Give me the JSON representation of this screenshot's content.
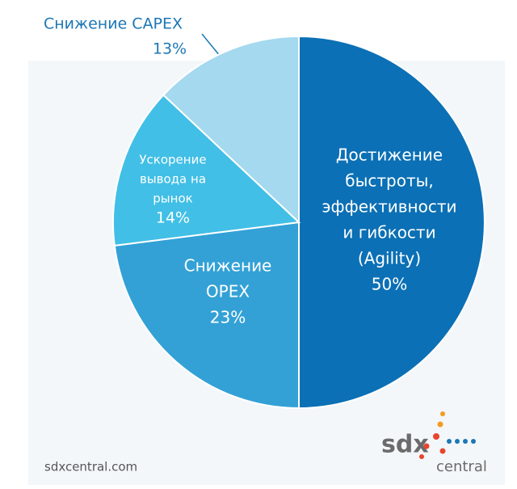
{
  "chart_data": {
    "type": "pie",
    "categories": [
      [
        "Достижение",
        "быстроты,",
        "эффективности",
        "и гибкости",
        "(Agility)"
      ],
      [
        "Снижение",
        "OPEX"
      ],
      [
        "Ускорение",
        "вывода на",
        "рынок"
      ],
      [
        "Снижение CAPEX"
      ]
    ],
    "values": [
      50,
      23,
      14,
      13
    ],
    "value_labels": [
      "50%",
      "23%",
      "14%",
      "13%"
    ],
    "colors": [
      "#0b70b5",
      "#33a1d6",
      "#41bfe6",
      "#a4d9ef"
    ],
    "start_angle": 0,
    "direction": "clockwise"
  },
  "footer": {
    "site": "sdxcentral.com",
    "logo_main": "sdx",
    "logo_sub": "central"
  }
}
